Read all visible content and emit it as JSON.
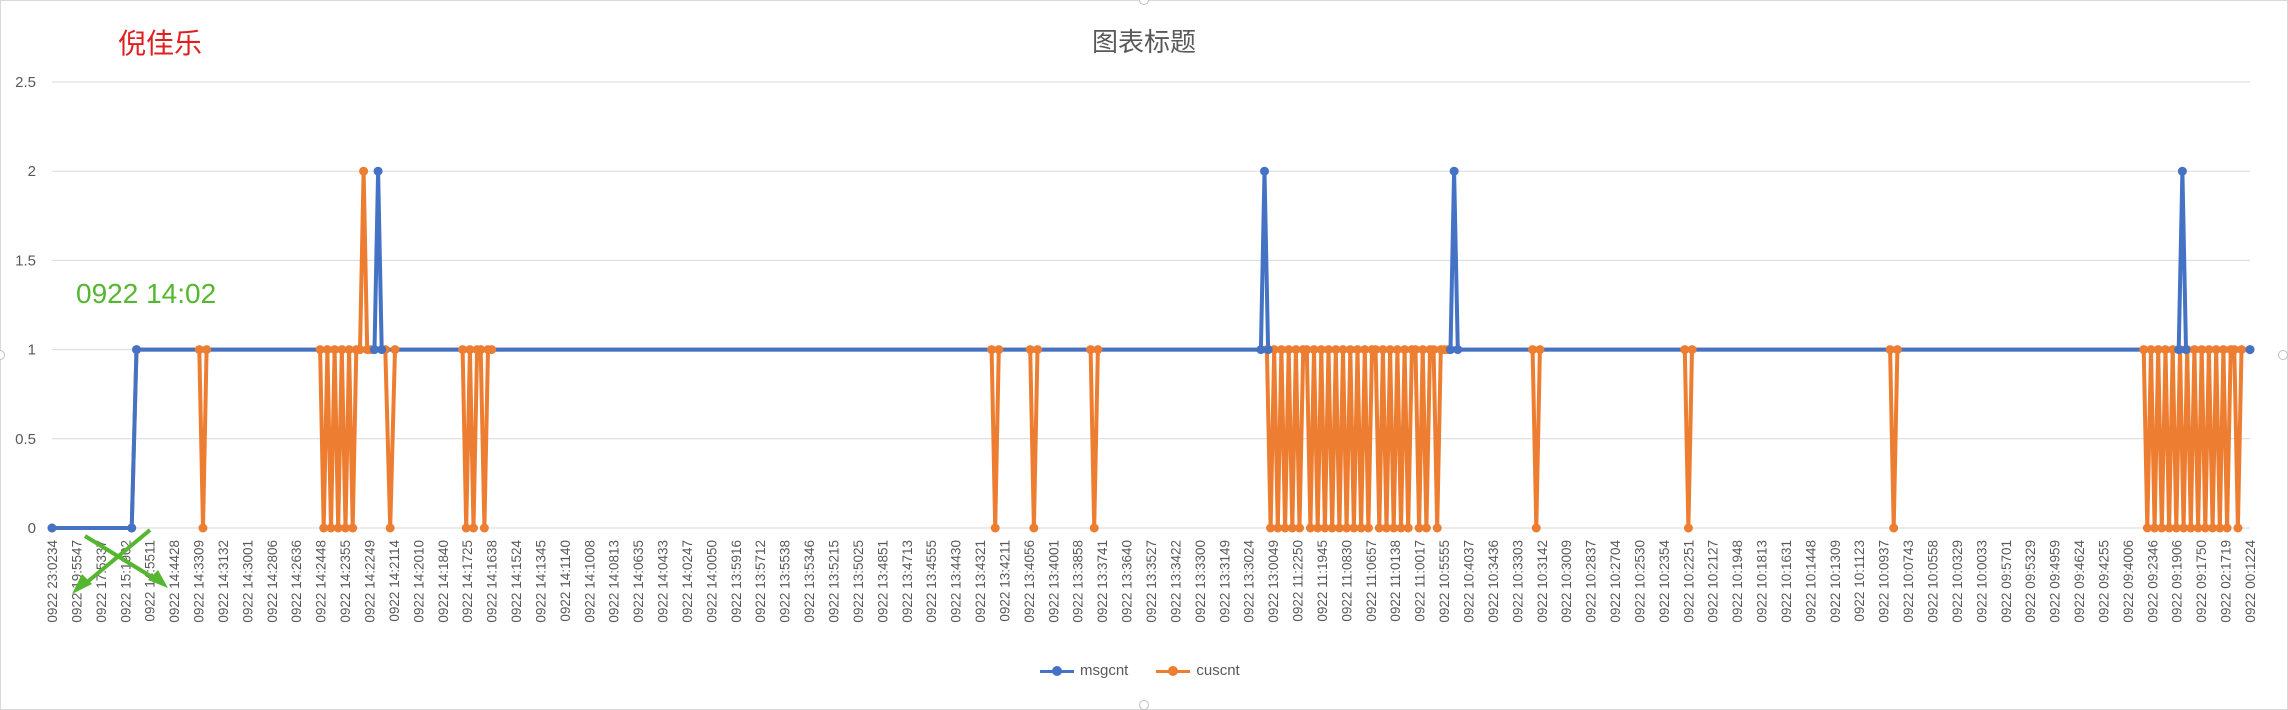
{
  "annotations": {
    "name_text": "倪佳乐",
    "time_text": "0922 14:02",
    "name_color": "#e02020",
    "time_color": "#55b72f"
  },
  "colors": {
    "msgcnt": "#4472c4",
    "cuscnt": "#ed7d31",
    "grid": "#d9d9d9",
    "text": "#595959"
  },
  "chart_data": {
    "type": "line",
    "title": "图表标题",
    "xlabel": "",
    "ylabel": "",
    "ylim": [
      0,
      2.5
    ],
    "yticks": [
      0,
      0.5,
      1,
      1.5,
      2,
      2.5
    ],
    "ytick_labels": [
      "0",
      "0.5",
      "1",
      "1.5",
      "2",
      "2.5"
    ],
    "grid": true,
    "legend_position": "bottom",
    "x_tick_labels": [
      "0922 23:0234",
      "0922 19:5547",
      "0922 17:5337",
      "0922 15:1902",
      "0922 14:5511",
      "0922 14:4428",
      "0922 14:3309",
      "0922 14:3132",
      "0922 14:3001",
      "0922 14:2806",
      "0922 14:2636",
      "0922 14:2448",
      "0922 14:2355",
      "0922 14:2249",
      "0922 14:2114",
      "0922 14:2010",
      "0922 14:1840",
      "0922 14:1725",
      "0922 14:1638",
      "0922 14:1524",
      "0922 14:1345",
      "0922 14:1140",
      "0922 14:1008",
      "0922 14:0813",
      "0922 14:0635",
      "0922 14:0433",
      "0922 14:0247",
      "0922 14:0050",
      "0922 13:5916",
      "0922 13:5712",
      "0922 13:5538",
      "0922 13:5346",
      "0922 13:5215",
      "0922 13:5025",
      "0922 13:4851",
      "0922 13:4713",
      "0922 13:4555",
      "0922 13:4430",
      "0922 13:4321",
      "0922 13:4211",
      "0922 13:4056",
      "0922 13:4001",
      "0922 13:3858",
      "0922 13:3741",
      "0922 13:3640",
      "0922 13:3527",
      "0922 13:3422",
      "0922 13:3300",
      "0922 13:3149",
      "0922 13:3024",
      "0922 13:0049",
      "0922 11:2250",
      "0922 11:1945",
      "0922 11:0830",
      "0922 11:0657",
      "0922 11:0138",
      "0922 11:0017",
      "0922 10:5555",
      "0922 10:4037",
      "0922 10:3436",
      "0922 10:3303",
      "0922 10:3142",
      "0922 10:3009",
      "0922 10:2837",
      "0922 10:2704",
      "0922 10:2530",
      "0922 10:2354",
      "0922 10:2251",
      "0922 10:2127",
      "0922 10:1948",
      "0922 10:1813",
      "0922 10:1631",
      "0922 10:1448",
      "0922 10:1309",
      "0922 10:1123",
      "0922 10:0937",
      "0922 10:0743",
      "0922 10:0558",
      "0922 10:0329",
      "0922 10:0033",
      "0922 09:5701",
      "0922 09:5329",
      "0922 09:4959",
      "0922 09:4624",
      "0922 09:4255",
      "0922 09:4006",
      "0922 09:2346",
      "0922 09:1906",
      "0922 09:1750",
      "0922 02:1719",
      "0922 00:1224"
    ],
    "x_range": [
      0,
      91
    ],
    "series": [
      {
        "name": "msgcnt",
        "color": "#4472c4",
        "x": [
          0,
          3.3,
          3.5,
          13.35,
          13.5,
          13.65,
          50.05,
          50.2,
          50.35,
          57.9,
          58.05,
          58.2,
          88.05,
          88.2,
          88.35,
          91
        ],
        "values": [
          0,
          0,
          1,
          1,
          2,
          1,
          1,
          2,
          1,
          1,
          2,
          1,
          1,
          2,
          1,
          1
        ]
      },
      {
        "name": "cuscnt",
        "color": "#ed7d31",
        "x": [
          0,
          3.3,
          3.5,
          6.1,
          6.25,
          6.4,
          11.1,
          11.25,
          11.4,
          11.55,
          11.7,
          11.85,
          12.0,
          12.15,
          12.3,
          12.45,
          12.6,
          12.75,
          12.9,
          13.05,
          13.2,
          13.8,
          14.0,
          14.2,
          17.0,
          17.15,
          17.3,
          17.45,
          17.6,
          17.75,
          17.9,
          18.05,
          18.2,
          38.9,
          39.05,
          39.2,
          40.5,
          40.65,
          40.8,
          43.0,
          43.15,
          43.3,
          50.3,
          50.45,
          50.6,
          50.75,
          50.9,
          51.05,
          51.2,
          51.35,
          51.5,
          51.65,
          51.8,
          51.95,
          52.1,
          52.25,
          52.4,
          52.55,
          52.7,
          52.85,
          53.0,
          53.15,
          53.3,
          53.45,
          53.6,
          53.75,
          53.9,
          54.05,
          54.2,
          54.35,
          54.5,
          54.65,
          54.8,
          54.95,
          55.1,
          55.25,
          55.4,
          55.55,
          55.7,
          55.85,
          56.0,
          56.15,
          56.3,
          56.45,
          56.6,
          56.75,
          56.9,
          57.05,
          57.2,
          57.35,
          57.5,
          57.65,
          57.8,
          61.3,
          61.45,
          61.6,
          67.6,
          67.75,
          67.9,
          76.1,
          76.25,
          76.4,
          86.6,
          86.75,
          86.9,
          87.05,
          87.2,
          87.35,
          87.5,
          87.65,
          87.8,
          87.95,
          88.1,
          88.25,
          88.4,
          88.55,
          88.7,
          88.85,
          89.0,
          89.15,
          89.3,
          89.45,
          89.6,
          89.75,
          89.9,
          90.05,
          90.2,
          90.35,
          90.5,
          90.65,
          91
        ],
        "values": [
          0,
          0,
          1,
          1,
          0,
          1,
          1,
          0,
          1,
          0,
          1,
          0,
          1,
          0,
          1,
          0,
          1,
          1,
          2,
          1,
          1,
          1,
          0,
          1,
          1,
          0,
          1,
          0,
          1,
          1,
          0,
          1,
          1,
          1,
          0,
          1,
          1,
          0,
          1,
          1,
          0,
          1,
          1,
          0,
          1,
          0,
          1,
          0,
          1,
          0,
          1,
          0,
          1,
          1,
          0,
          1,
          0,
          1,
          0,
          1,
          0,
          1,
          0,
          1,
          0,
          1,
          0,
          1,
          0,
          1,
          0,
          1,
          1,
          0,
          1,
          0,
          1,
          0,
          1,
          0,
          1,
          0,
          1,
          1,
          0,
          1,
          0,
          1,
          1,
          0,
          1,
          1,
          1,
          1,
          0,
          1,
          1,
          0,
          1,
          1,
          0,
          1,
          1,
          0,
          1,
          0,
          1,
          0,
          1,
          0,
          1,
          0,
          1,
          0,
          1,
          0,
          1,
          0,
          1,
          0,
          1,
          0,
          1,
          0,
          1,
          0,
          1,
          1,
          0,
          1,
          1
        ]
      }
    ]
  }
}
